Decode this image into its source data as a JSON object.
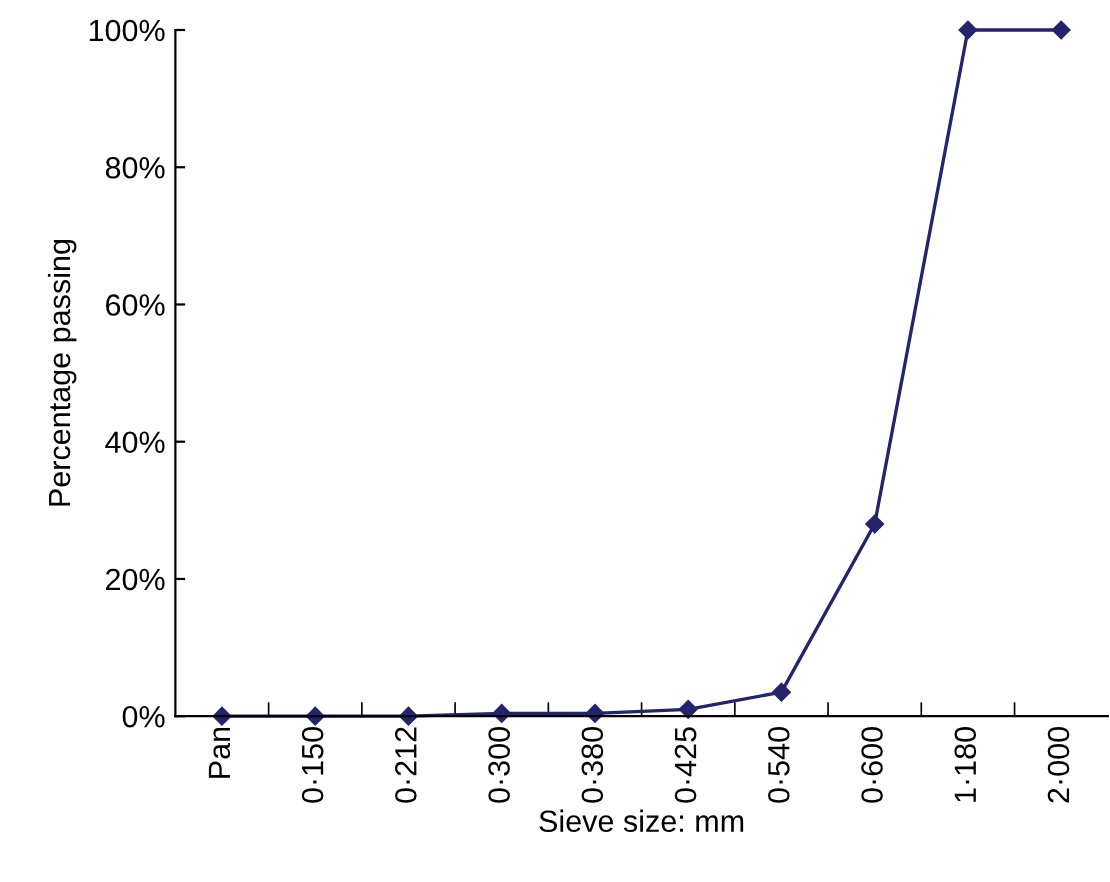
{
  "chart_data": {
    "type": "line",
    "xlabel": "Sieve size: mm",
    "ylabel": "Percentage passing",
    "categories": [
      "Pan",
      "0·150",
      "0·212",
      "0·300",
      "0·380",
      "0·425",
      "0·540",
      "0·600",
      "1·180",
      "2·000"
    ],
    "series": [
      {
        "color": "#23236e",
        "values": [
          0,
          0,
          0,
          0.4,
          0.4,
          1,
          3.5,
          28,
          100,
          100
        ]
      }
    ],
    "ylim": [
      0,
      100
    ],
    "yticks": [
      {
        "value": 0,
        "label": "0%"
      },
      {
        "value": 20,
        "label": "20%"
      },
      {
        "value": 40,
        "label": "40%"
      },
      {
        "value": 60,
        "label": "60%"
      },
      {
        "value": 80,
        "label": "80%"
      },
      {
        "value": 100,
        "label": "100%"
      }
    ],
    "marker": "diamond",
    "line_style": "solid",
    "grid": false,
    "legend": false
  }
}
